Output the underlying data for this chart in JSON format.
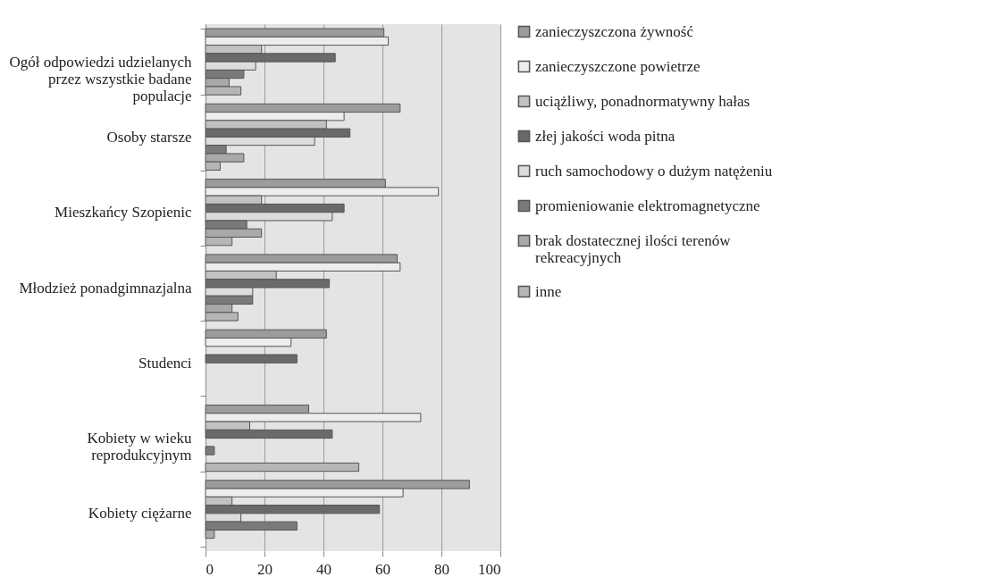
{
  "chart_data": {
    "type": "bar",
    "orientation": "horizontal",
    "categories": [
      "Ogół odpowiedzi udzielanych przez wszystkie badane populacje",
      "Osoby starsze",
      "Mieszkańcy Szopienic",
      "Młodzież ponadgimnazjalna",
      "Studenci",
      "Kobiety w wieku reprodukcyjnym",
      "Kobiety ciężarne"
    ],
    "series": [
      {
        "name": "zanieczyszczona żywność",
        "color": "#9c9c9c",
        "values": [
          60.5,
          66,
          61,
          65,
          41,
          35,
          89.5
        ]
      },
      {
        "name": "zanieczyszczone powietrze",
        "color": "#ededed",
        "values": [
          62,
          47,
          79,
          66,
          29,
          73,
          67
        ]
      },
      {
        "name": "uciążliwy, ponadnormatywny hałas",
        "color": "#c2c2c2",
        "values": [
          19,
          41,
          19,
          24,
          null,
          15,
          9
        ]
      },
      {
        "name": "złej jakości woda pitna",
        "color": "#6a6a6a",
        "values": [
          44,
          49,
          47,
          42,
          31,
          43,
          59
        ]
      },
      {
        "name": "ruch samochodowy o dużym natężeniu",
        "color": "#dcdcdc",
        "values": [
          17,
          37,
          43,
          16,
          null,
          null,
          12
        ]
      },
      {
        "name": "promieniowanie elektromagnetyczne",
        "color": "#7a7a7a",
        "values": [
          13,
          7,
          14,
          16,
          null,
          3,
          31
        ]
      },
      {
        "name": "brak dostatecznej ilości terenów rekreacyjnych",
        "color": "#a9a9a9",
        "values": [
          8,
          13,
          19,
          9,
          null,
          null,
          3
        ]
      },
      {
        "name": "inne",
        "color": "#b6b6b6",
        "values": [
          12,
          5,
          9,
          11,
          null,
          52,
          null
        ]
      }
    ],
    "xlim": [
      0,
      100
    ],
    "xticks": [
      0,
      20,
      40,
      60,
      80,
      100
    ],
    "grid": "x",
    "legend": "right"
  }
}
